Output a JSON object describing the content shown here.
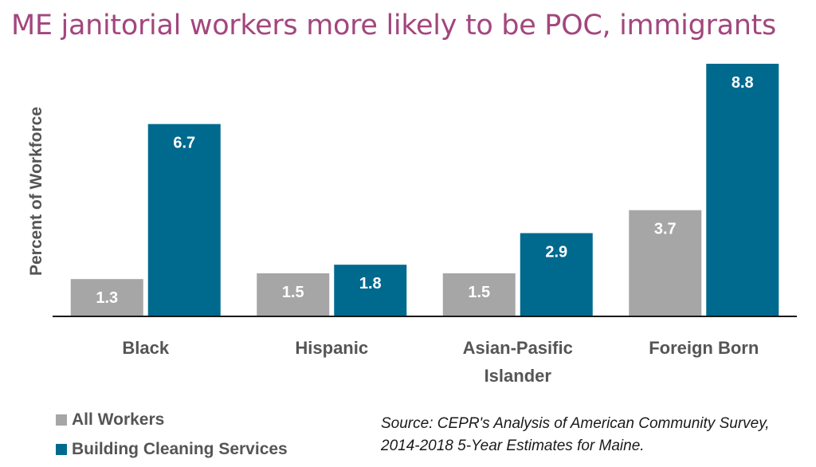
{
  "chart_data": {
    "type": "bar",
    "title": "ME janitorial workers more likely to be POC, immigrants",
    "ylabel": "Percent of Workforce",
    "categories": [
      "Black",
      "Hispanic",
      "Asian-Pasific Islander",
      "Foreign Born"
    ],
    "category_lines": [
      [
        "Black"
      ],
      [
        "Hispanic"
      ],
      [
        "Asian-Pasific",
        "Islander"
      ],
      [
        "Foreign Born"
      ]
    ],
    "series": [
      {
        "name": "All Workers",
        "values": [
          1.3,
          1.5,
          1.5,
          3.7
        ],
        "color": "#a6a6a6"
      },
      {
        "name": "Building Cleaning Services",
        "values": [
          6.7,
          1.8,
          2.9,
          8.8
        ],
        "color": "#006a8e"
      }
    ],
    "ylim": [
      0,
      8.8
    ],
    "grid": false,
    "legend_position": "bottom-left",
    "source": [
      "Source: CEPR's Analysis of American Community Survey,",
      "2014-2018 5-Year Estimates for Maine."
    ]
  }
}
